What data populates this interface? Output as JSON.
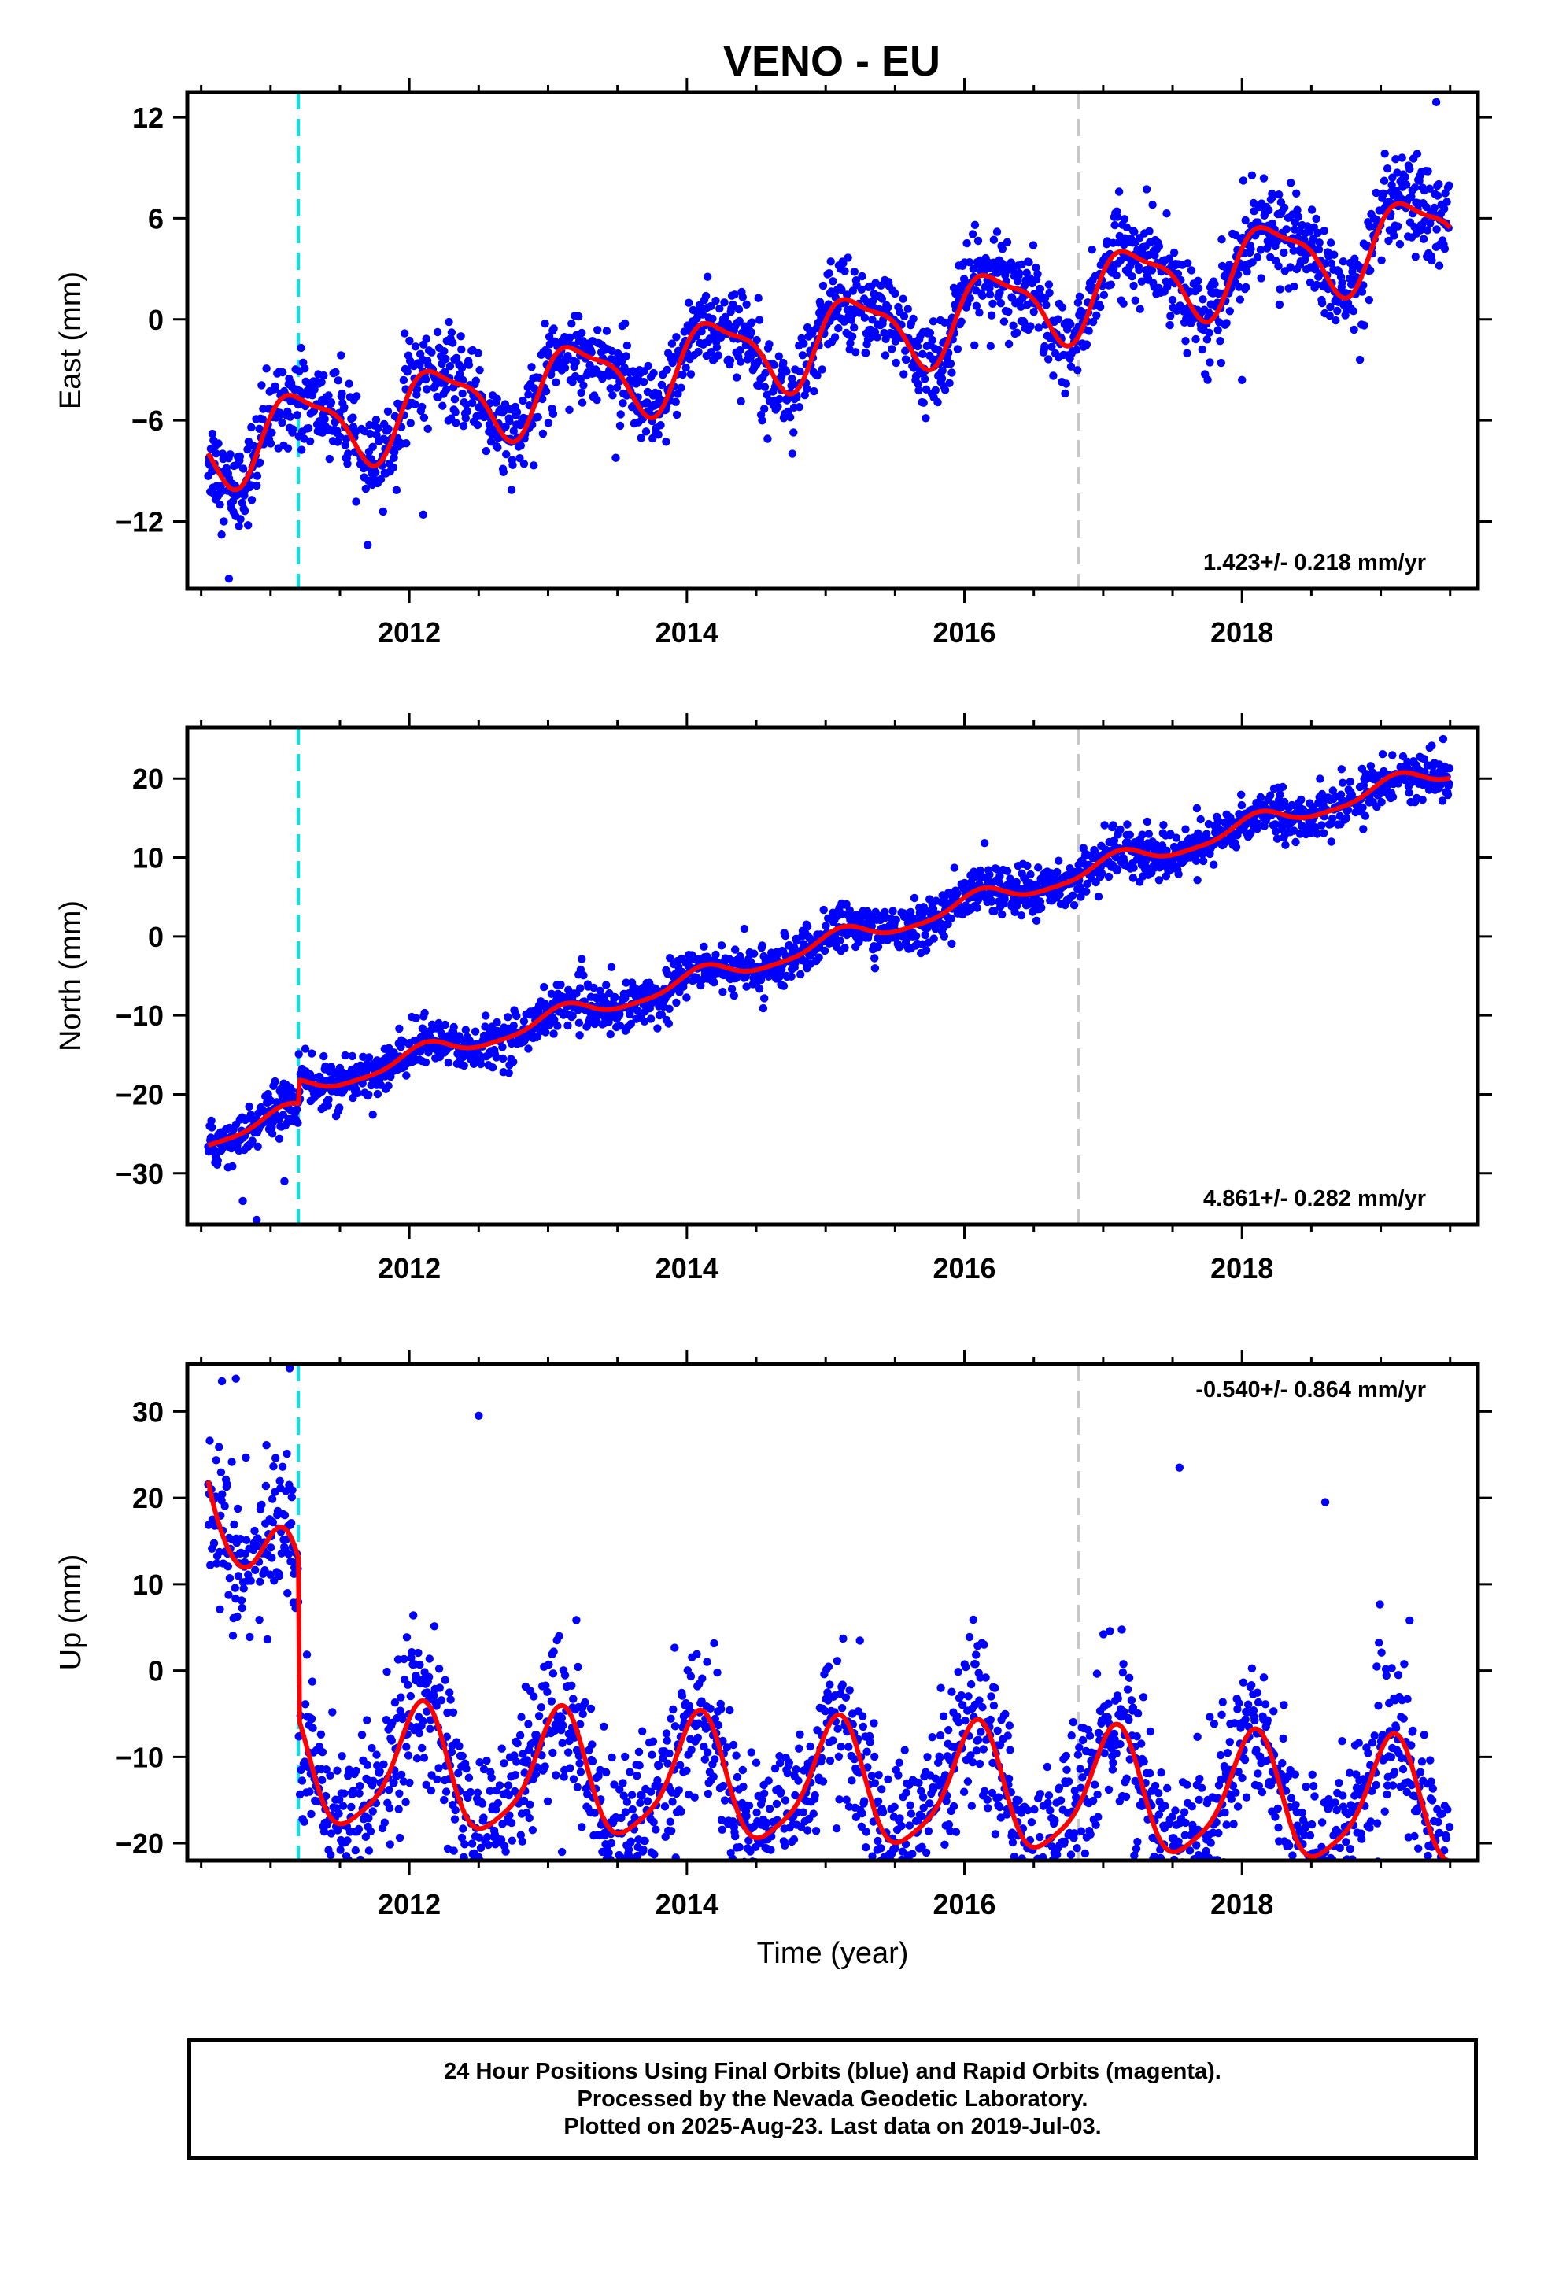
{
  "figure": {
    "title": "VENO - EU",
    "colors": {
      "data": "#0000ff",
      "model": "#ff0000",
      "event_cyan": "#00e5ee",
      "event_gray": "#c8c8c8"
    },
    "caption": [
      "24 Hour Positions Using Final Orbits (blue) and Rapid Orbits (magenta).",
      "Processed by the Nevada Geodetic Laboratory.",
      "Plotted on 2025-Aug-23. Last data on 2019-Jul-03."
    ]
  },
  "chart_data": [
    {
      "type": "scatter",
      "ylabel": "East (mm)",
      "xlabel": "",
      "xlim": [
        2010.4,
        2019.7
      ],
      "ylim": [
        -16,
        13.5
      ],
      "xticks": [
        2012,
        2014,
        2016,
        2018
      ],
      "yticks": [
        -12,
        -6,
        0,
        6,
        12
      ],
      "rate_text": "1.423+/- 0.218 mm/yr",
      "rate_position": "bottom-right",
      "event_lines": [
        {
          "x": 2011.2,
          "color": "cyan"
        },
        {
          "x": 2016.82,
          "color": "gray"
        }
      ],
      "model": {
        "start": 2010.55,
        "end": 2019.5,
        "base": -7.5,
        "rate": 1.423,
        "offset_at_2011_2": 0.0,
        "amp_annual": 2.3,
        "phase_annual": 0.2,
        "amp_semiannual": 0.7,
        "phase_semiannual": 1.2
      },
      "scatter_sd": 1.3,
      "outliers": [
        [
          2010.7,
          -15.4
        ],
        [
          2011.7,
          -13.4
        ],
        [
          2012.1,
          -11.6
        ],
        [
          2018.0,
          -3.6
        ],
        [
          2018.85,
          -2.4
        ],
        [
          2019.4,
          12.9
        ]
      ]
    },
    {
      "type": "scatter",
      "ylabel": "North (mm)",
      "xlabel": "",
      "xlim": [
        2010.4,
        2019.7
      ],
      "ylim": [
        -36.5,
        26.5
      ],
      "xticks": [
        2012,
        2014,
        2016,
        2018
      ],
      "yticks": [
        -30,
        -20,
        -10,
        0,
        10,
        20
      ],
      "rate_text": "4.861+/- 0.282 mm/yr",
      "rate_position": "bottom-right",
      "event_lines": [
        {
          "x": 2011.2,
          "color": "cyan"
        },
        {
          "x": 2016.82,
          "color": "gray"
        }
      ],
      "model": {
        "start": 2010.55,
        "end": 2019.5,
        "base": -25.5,
        "rate": 4.861,
        "offset_at_2011_2": 3.0,
        "amp_annual": 1.2,
        "phase_annual": 0.9,
        "amp_semiannual": 0.3,
        "phase_semiannual": 0.0
      },
      "scatter_sd": 1.5,
      "outliers": [
        [
          2010.8,
          -33.5
        ],
        [
          2010.9,
          -35.9
        ],
        [
          2011.1,
          -31.0
        ],
        [
          2019.45,
          25.0
        ]
      ]
    },
    {
      "type": "scatter",
      "ylabel": "Up (mm)",
      "xlabel": "Time (year)",
      "xlim": [
        2010.4,
        2019.7
      ],
      "ylim": [
        -22,
        35.5
      ],
      "xticks": [
        2012,
        2014,
        2016,
        2018
      ],
      "yticks": [
        -20,
        -10,
        0,
        10,
        20,
        30
      ],
      "rate_text": "-0.540+/- 0.864 mm/yr",
      "rate_position": "top-right",
      "event_lines": [
        {
          "x": 2011.2,
          "color": "cyan"
        },
        {
          "x": 2016.82,
          "color": "gray"
        }
      ],
      "model": {
        "start": 2010.55,
        "end": 2019.5,
        "base": 0.0,
        "rate": -0.54,
        "offset_at_2011_2": -11.0,
        "decay_amp": 22.0,
        "decay_tau": 0.25,
        "amp_annual": 7.0,
        "phase_annual": 1.1,
        "amp_semiannual": 1.5,
        "phase_semiannual": 0.0
      },
      "scatter_sd": 4.5,
      "outliers": [
        [
          2010.65,
          33.5
        ],
        [
          2010.75,
          33.8
        ],
        [
          2012.5,
          29.5
        ],
        [
          2013.1,
          -21.0
        ],
        [
          2017.55,
          23.5
        ],
        [
          2018.6,
          19.5
        ]
      ]
    }
  ]
}
